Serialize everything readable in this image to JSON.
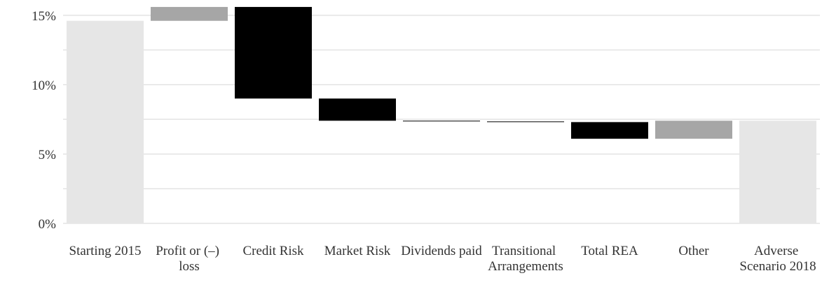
{
  "chart_data": {
    "type": "waterfall",
    "categories": [
      "Starting 2015",
      "Profit or (–) loss",
      "Credit Risk",
      "Market Risk",
      "Dividends paid",
      "Transitional Arrangements",
      "Total REA",
      "Other",
      "Adverse Scenario 2018"
    ],
    "values": [
      14.6,
      1.0,
      -6.6,
      -1.6,
      -0.05,
      -0.05,
      -1.2,
      1.3,
      7.4
    ],
    "measure": [
      "absolute",
      "relative",
      "relative",
      "relative",
      "relative",
      "relative",
      "relative",
      "relative",
      "absolute"
    ],
    "colors": {
      "absolute": "#e6e6e6",
      "increase": "#a6a6a6",
      "decrease": "#000000"
    },
    "ylim": [
      0,
      16
    ],
    "yticks": [
      {
        "value": 0,
        "label": "0%"
      },
      {
        "value": 5,
        "label": "5%"
      },
      {
        "value": 10,
        "label": "10%"
      },
      {
        "value": 15,
        "label": "15%"
      }
    ],
    "grid_lines": [
      0,
      2.5,
      5,
      7.5,
      10,
      12.5,
      15
    ],
    "grid": true
  }
}
